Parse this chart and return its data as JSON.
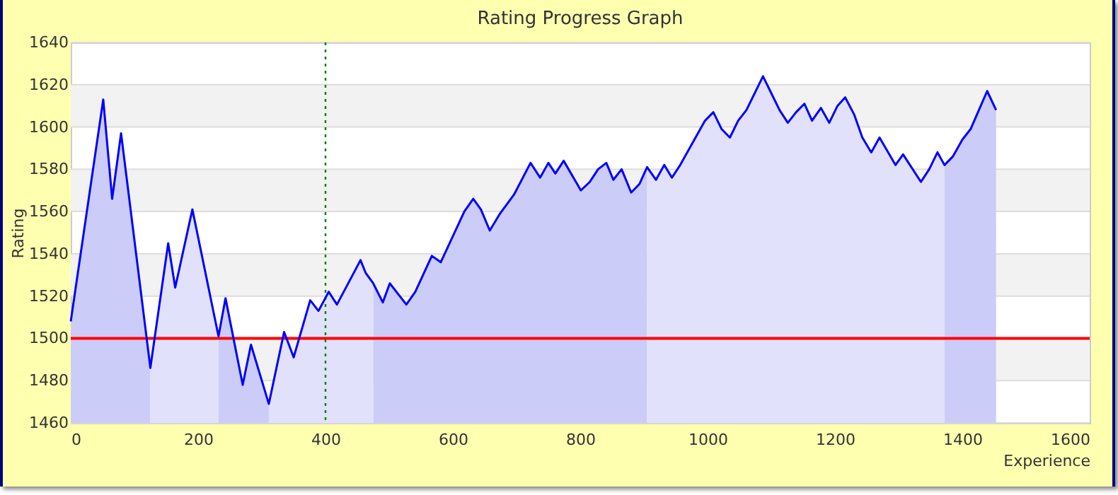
{
  "chart_data": {
    "type": "area",
    "title": "Rating Progress Graph",
    "xlabel": "Experience",
    "ylabel": "Rating",
    "xlim": [
      0,
      1600
    ],
    "xticks": [
      0,
      200,
      400,
      600,
      800,
      1000,
      1200,
      1400,
      1600
    ],
    "ylim": [
      1460,
      1640
    ],
    "yticks": [
      1460,
      1480,
      1500,
      1520,
      1540,
      1560,
      1580,
      1600,
      1620,
      1640
    ],
    "grid": "y",
    "series": [
      {
        "color": "#ccccf8",
        "x": [
          0,
          51,
          65,
          79,
          125
        ],
        "values": [
          1508,
          1613,
          1566,
          1597,
          1486
        ]
      },
      {
        "color": "#e1e1fb",
        "x": [
          125,
          153,
          164,
          191,
          232
        ],
        "values": [
          1486,
          1545,
          1524,
          1561,
          1501
        ]
      },
      {
        "color": "#ccccf8",
        "x": [
          232,
          243,
          270,
          283,
          311
        ],
        "values": [
          1501,
          1519,
          1478,
          1497,
          1469
        ]
      },
      {
        "color": "#e1e1fb",
        "x": [
          311,
          335,
          350,
          376,
          389,
          405,
          418,
          455,
          463,
          475
        ],
        "values": [
          1469,
          1503,
          1491,
          1518,
          1513,
          1522,
          1516,
          1537,
          1531,
          1526
        ]
      },
      {
        "color": "#ccccf8",
        "x": [
          475,
          490,
          501,
          527,
          541,
          567,
          581,
          618,
          632,
          644,
          658,
          674,
          696,
          722,
          737,
          750,
          761,
          774,
          801,
          815,
          828,
          841,
          852,
          865,
          880,
          893,
          905
        ],
        "values": [
          1526,
          1517,
          1526,
          1516,
          1522,
          1539,
          1536,
          1560,
          1566,
          1561,
          1551,
          1559,
          1568,
          1583,
          1576,
          1583,
          1578,
          1584,
          1570,
          1574,
          1580,
          1583,
          1575,
          1580,
          1569,
          1573,
          1581
        ]
      },
      {
        "color": "#e1e1fb",
        "x": [
          905,
          919,
          932,
          944,
          957,
          996,
          1009,
          1022,
          1035,
          1048,
          1061,
          1087,
          1100,
          1113,
          1126,
          1139,
          1152,
          1164,
          1178,
          1191,
          1204,
          1216,
          1230,
          1243,
          1257,
          1270,
          1295,
          1307,
          1335,
          1348,
          1361,
          1372
        ],
        "values": [
          1581,
          1575,
          1582,
          1576,
          1582,
          1603,
          1607,
          1599,
          1595,
          1603,
          1608,
          1624,
          1616,
          1608,
          1602,
          1607,
          1611,
          1603,
          1609,
          1602,
          1610,
          1614,
          1606,
          1595,
          1588,
          1595,
          1582,
          1587,
          1574,
          1580,
          1588,
          1582
        ]
      },
      {
        "color": "#ccccf8",
        "x": [
          1372,
          1385,
          1400,
          1413,
          1439,
          1453
        ],
        "values": [
          1582,
          1586,
          1594,
          1599,
          1617,
          1608
        ]
      },
      {
        "type": "line",
        "color": "#0000ff",
        "x": [
          0,
          51,
          65,
          79,
          125,
          153,
          164,
          191,
          232,
          243,
          270,
          283,
          311,
          335,
          350,
          376,
          389,
          405,
          418,
          455,
          463,
          475,
          490,
          501,
          527,
          541,
          567,
          581,
          618,
          632,
          644,
          658,
          674,
          696,
          722,
          737,
          750,
          761,
          774,
          801,
          815,
          828,
          841,
          852,
          865,
          880,
          893,
          905,
          919,
          932,
          944,
          957,
          996,
          1009,
          1022,
          1035,
          1048,
          1061,
          1087,
          1100,
          1113,
          1126,
          1139,
          1152,
          1164,
          1178,
          1191,
          1204,
          1216,
          1230,
          1243,
          1257,
          1270,
          1295,
          1307,
          1335,
          1348,
          1361,
          1372,
          1385,
          1400,
          1413,
          1439,
          1453
        ],
        "values": [
          1508,
          1613,
          1566,
          1597,
          1486,
          1545,
          1524,
          1561,
          1501,
          1519,
          1478,
          1497,
          1469,
          1503,
          1491,
          1518,
          1513,
          1522,
          1516,
          1537,
          1531,
          1526,
          1517,
          1526,
          1516,
          1522,
          1539,
          1536,
          1560,
          1566,
          1561,
          1551,
          1559,
          1568,
          1583,
          1576,
          1583,
          1578,
          1584,
          1570,
          1574,
          1580,
          1583,
          1575,
          1580,
          1569,
          1573,
          1581,
          1575,
          1582,
          1576,
          1582,
          1603,
          1607,
          1599,
          1595,
          1603,
          1608,
          1624,
          1616,
          1608,
          1602,
          1607,
          1611,
          1603,
          1609,
          1602,
          1610,
          1614,
          1606,
          1595,
          1588,
          1595,
          1582,
          1587,
          1574,
          1580,
          1588,
          1582,
          1586,
          1594,
          1599,
          1617,
          1608
        ]
      }
    ],
    "ref_lines": [
      {
        "axis": "y",
        "value": 1500,
        "color": "#ff0000",
        "line_style": "solid"
      },
      {
        "axis": "x",
        "value": 400,
        "color": "#008000",
        "line_style": "dotted"
      }
    ]
  }
}
